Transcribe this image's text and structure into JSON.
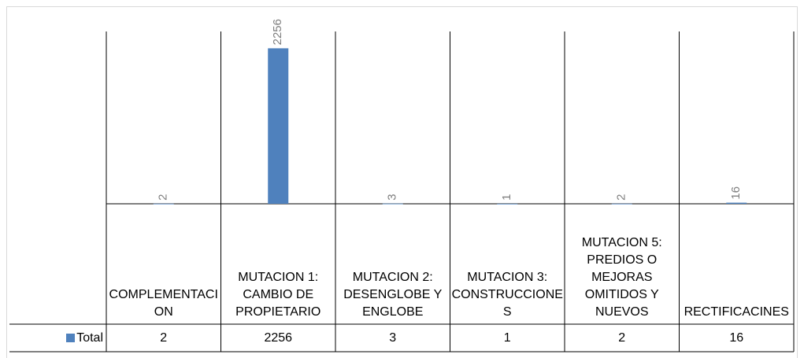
{
  "chart_data": {
    "type": "bar",
    "categories": [
      "COMPLEMENTACION",
      "MUTACION 1: CAMBIO DE PROPIETARIO",
      "MUTACION 2: DESENGLOBE Y ENGLOBE",
      "MUTACION 3: CONSTRUCCIONES",
      "MUTACION 5: PREDIOS O MEJORAS OMITIDOS Y NUEVOS",
      "RECTIFICACINES"
    ],
    "series": [
      {
        "name": "Total",
        "color": "#4f81bd",
        "values": [
          2,
          2256,
          3,
          1,
          2,
          16
        ]
      }
    ],
    "ylim": [
      0,
      2500
    ]
  }
}
